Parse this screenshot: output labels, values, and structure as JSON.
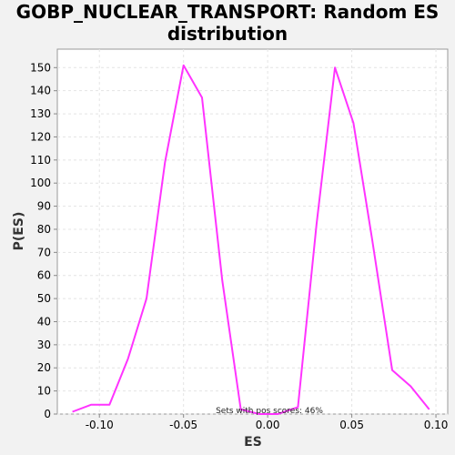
{
  "chart_data": {
    "type": "line",
    "title_lines": [
      "GOBP_NUCLEAR_TRANSPORT: Random ES",
      "distribution"
    ],
    "xlabel": "ES",
    "ylabel": "P(ES)",
    "xlim": [
      -0.125,
      0.107
    ],
    "ylim": [
      0,
      158
    ],
    "x_ticks": [
      -0.1,
      -0.05,
      0.0,
      0.05,
      0.1
    ],
    "x_tick_labels": [
      "-0.10",
      "-0.05",
      "0.00",
      "0.05",
      "0.10"
    ],
    "y_ticks": [
      0,
      10,
      20,
      30,
      40,
      50,
      60,
      70,
      80,
      90,
      100,
      110,
      120,
      130,
      140,
      150
    ],
    "y_tick_labels": [
      "0",
      "10",
      "20",
      "30",
      "40",
      "50",
      "60",
      "70",
      "80",
      "90",
      "100",
      "110",
      "120",
      "130",
      "140",
      "150"
    ],
    "grid": true,
    "series": [
      {
        "color": "#ff33ff",
        "x": [
          -0.116,
          -0.105,
          -0.094,
          -0.083,
          -0.072,
          -0.061,
          -0.05,
          -0.039,
          -0.027,
          -0.016,
          -0.005,
          0.006,
          0.018,
          0.029,
          0.04,
          0.051,
          0.062,
          0.074,
          0.085,
          0.096
        ],
        "y": [
          1,
          4,
          4,
          24,
          50,
          109,
          151,
          137,
          58,
          2,
          0,
          0,
          3,
          82,
          150,
          126,
          76,
          19,
          12,
          2
        ]
      }
    ],
    "annotation": "Sets with pos scores: 46%"
  }
}
